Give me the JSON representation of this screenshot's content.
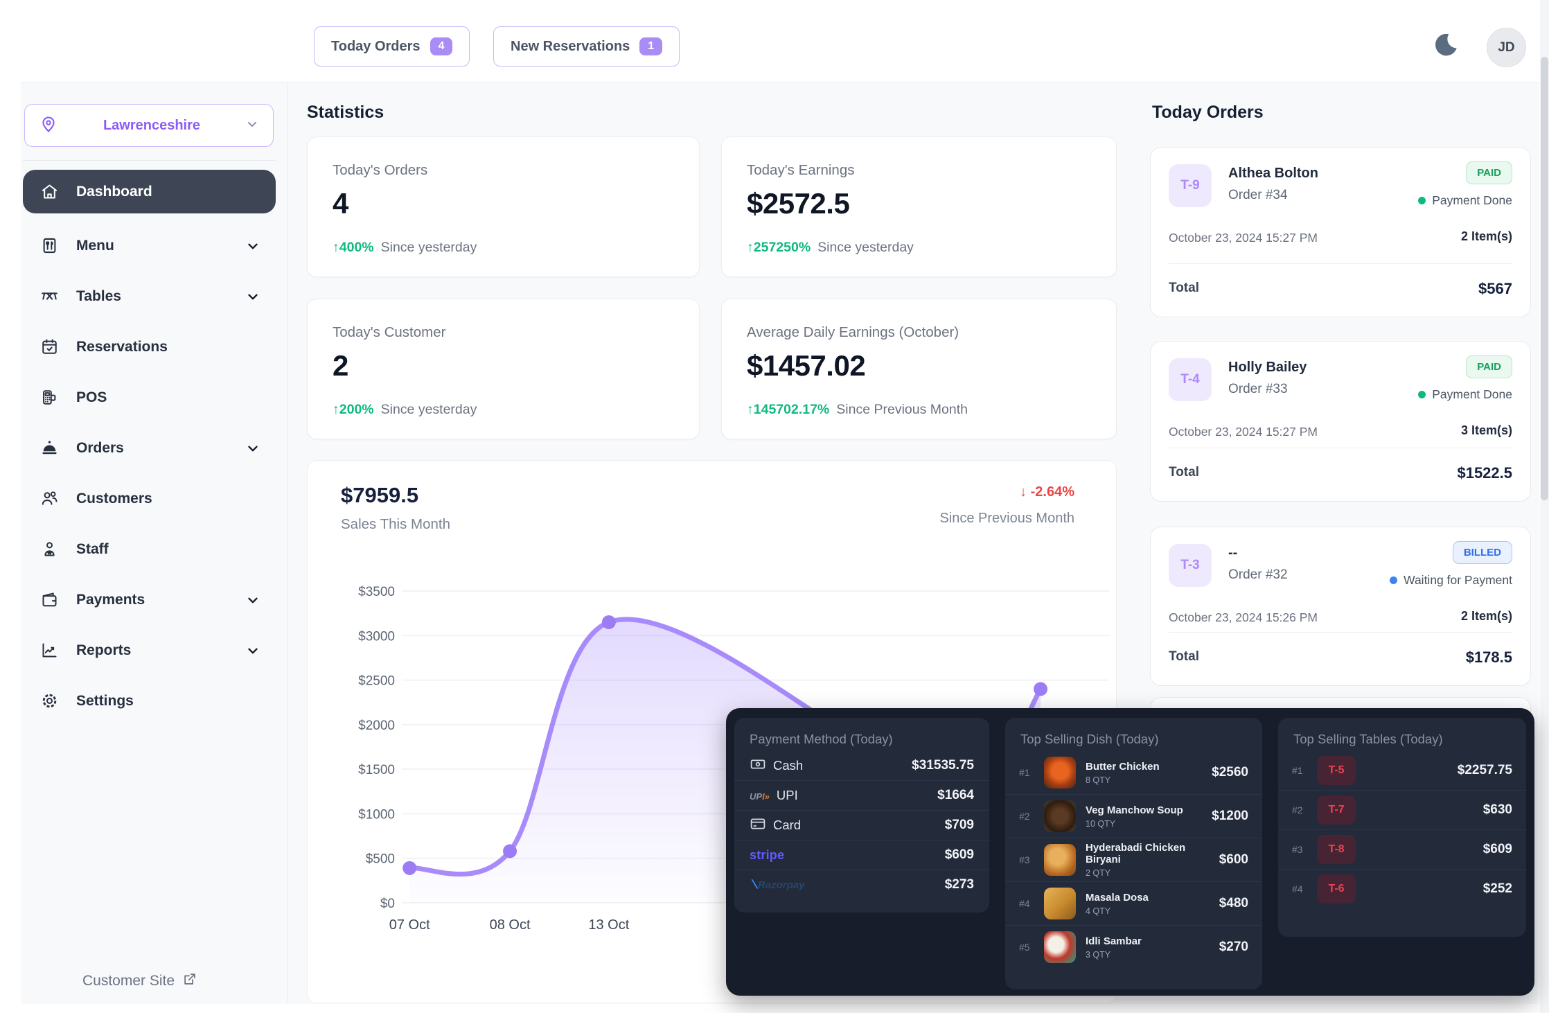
{
  "colors": {
    "accent_purple": "#a78bfa",
    "violet_border": "#c9b8f9",
    "green": "#10b981",
    "red": "#ef4444",
    "blue": "#3b82f6",
    "active_nav_bg": "#3e4554",
    "dark_panel": "#171d2b",
    "dark_card": "#232a3a",
    "app_bg": "#f8f9fb"
  },
  "topbar": {
    "today_orders_label": "Today Orders",
    "today_orders_count": "4",
    "new_reservations_label": "New Reservations",
    "new_reservations_count": "1",
    "avatar_initials": "JD"
  },
  "sidebar": {
    "location": "Lawrenceshire",
    "items": [
      {
        "label": "Dashboard",
        "icon": "home",
        "active": true,
        "chevron": false
      },
      {
        "label": "Menu",
        "icon": "menu-book",
        "active": false,
        "chevron": true
      },
      {
        "label": "Tables",
        "icon": "table",
        "active": false,
        "chevron": true
      },
      {
        "label": "Reservations",
        "icon": "calendar-check",
        "active": false,
        "chevron": false
      },
      {
        "label": "POS",
        "icon": "pos-terminal",
        "active": false,
        "chevron": false
      },
      {
        "label": "Orders",
        "icon": "cloche",
        "active": false,
        "chevron": true
      },
      {
        "label": "Customers",
        "icon": "users",
        "active": false,
        "chevron": false
      },
      {
        "label": "Staff",
        "icon": "person",
        "active": false,
        "chevron": false
      },
      {
        "label": "Payments",
        "icon": "wallet",
        "active": false,
        "chevron": true
      },
      {
        "label": "Reports",
        "icon": "chart",
        "active": false,
        "chevron": true
      },
      {
        "label": "Settings",
        "icon": "gear",
        "active": false,
        "chevron": false
      }
    ],
    "footer_link": "Customer Site"
  },
  "statistics": {
    "title": "Statistics",
    "cards": [
      {
        "label": "Today's Orders",
        "value": "4",
        "delta": "400%",
        "delta_dir": "up",
        "period": "Since yesterday"
      },
      {
        "label": "Today's Earnings",
        "value": "$2572.5",
        "delta": "257250%",
        "delta_dir": "up",
        "period": "Since yesterday"
      },
      {
        "label": "Today's Customer",
        "value": "2",
        "delta": "200%",
        "delta_dir": "up",
        "period": "Since yesterday"
      },
      {
        "label": "Average Daily Earnings (October)",
        "value": "$1457.02",
        "delta": "145702.17%",
        "delta_dir": "up",
        "period": "Since Previous Month"
      }
    ]
  },
  "sales": {
    "total": "$7959.5",
    "subtitle": "Sales This Month",
    "delta": "-2.64%",
    "note": "Since Previous Month"
  },
  "chart_data": {
    "type": "area",
    "title": "Sales This Month",
    "ylim": [
      0,
      3500
    ],
    "grid": true,
    "line_color": "#a78bfa",
    "y_ticks": [
      "$3500",
      "$3000",
      "$2500",
      "$2000",
      "$1500",
      "$1000",
      "$500",
      "$0"
    ],
    "x_ticks": [
      {
        "label": "07 Oct",
        "xf": 0.01
      },
      {
        "label": "08 Oct",
        "xf": 0.152
      },
      {
        "label": "13 Oct",
        "xf": 0.292
      }
    ],
    "series": [
      {
        "name": "Sales",
        "points": [
          {
            "x": "07 Oct",
            "xf": 0.01,
            "value": 390,
            "dot": true
          },
          {
            "x": "08 Oct",
            "xf": 0.152,
            "value": 580,
            "dot": true
          },
          {
            "x": "13 Oct",
            "xf": 0.292,
            "value": 3150,
            "dot": true
          },
          {
            "x": "",
            "xf": 0.62,
            "value": 1950,
            "dot": false,
            "occluded": true
          },
          {
            "x": "",
            "xf": 0.78,
            "value": 800,
            "dot": false,
            "occluded": true
          },
          {
            "x": "",
            "xf": 0.903,
            "value": 2400,
            "dot": true
          }
        ]
      }
    ]
  },
  "orders_panel": {
    "title": "Today Orders",
    "orders": [
      {
        "table": "T-9",
        "customer": "Althea Bolton",
        "order_no": "Order #34",
        "badge": "PAID",
        "badge_type": "paid",
        "status": "Payment Done",
        "date": "October 23, 2024 15:27 PM",
        "items": "2 Item(s)",
        "total_label": "Total",
        "total": "$567"
      },
      {
        "table": "T-4",
        "customer": "Holly Bailey",
        "order_no": "Order #33",
        "badge": "PAID",
        "badge_type": "paid",
        "status": "Payment Done",
        "date": "October 23, 2024 15:27 PM",
        "items": "3 Item(s)",
        "total_label": "Total",
        "total": "$1522.5"
      },
      {
        "table": "T-3",
        "customer": "--",
        "order_no": "Order #32",
        "badge": "BILLED",
        "badge_type": "billed",
        "status": "Waiting for Payment",
        "date": "October 23, 2024 15:26 PM",
        "items": "2 Item(s)",
        "total_label": "Total",
        "total": "$178.5"
      }
    ]
  },
  "overlay": {
    "payment": {
      "title": "Payment Method (Today)",
      "rows": [
        {
          "method": "Cash",
          "icon": "cash-icon",
          "amount": "$31535.75"
        },
        {
          "method": "UPI",
          "icon": "upi-logo",
          "amount": "$1664"
        },
        {
          "method": "Card",
          "icon": "card-icon",
          "amount": "$709"
        },
        {
          "method": "stripe",
          "icon": "stripe-logo",
          "amount": "$609"
        },
        {
          "method": "Razorpay",
          "icon": "razorpay-logo",
          "amount": "$273"
        }
      ]
    },
    "dishes": {
      "title": "Top Selling Dish (Today)",
      "rows": [
        {
          "rank": "#1",
          "name": "Butter Chicken",
          "qty": "8 QTY",
          "amount": "$2560"
        },
        {
          "rank": "#2",
          "name": "Veg Manchow Soup",
          "qty": "10 QTY",
          "amount": "$1200"
        },
        {
          "rank": "#3",
          "name": "Hyderabadi Chicken Biryani",
          "qty": "2 QTY",
          "amount": "$600"
        },
        {
          "rank": "#4",
          "name": "Masala Dosa",
          "qty": "4 QTY",
          "amount": "$480"
        },
        {
          "rank": "#5",
          "name": "Idli Sambar",
          "qty": "3 QTY",
          "amount": "$270"
        }
      ]
    },
    "tables": {
      "title": "Top Selling Tables (Today)",
      "rows": [
        {
          "rank": "#1",
          "table": "T-5",
          "amount": "$2257.75"
        },
        {
          "rank": "#2",
          "table": "T-7",
          "amount": "$630"
        },
        {
          "rank": "#3",
          "table": "T-8",
          "amount": "$609"
        },
        {
          "rank": "#4",
          "table": "T-6",
          "amount": "$252"
        }
      ]
    }
  }
}
